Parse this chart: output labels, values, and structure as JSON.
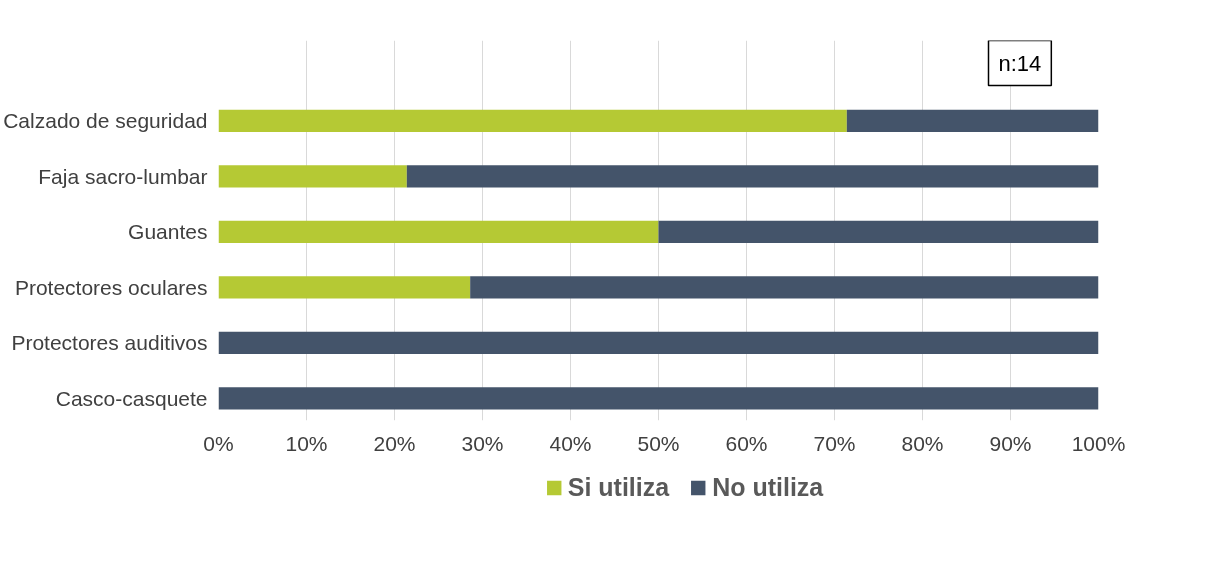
{
  "chart_data": {
    "type": "bar",
    "orientation": "horizontal",
    "stacked": true,
    "categories": [
      "Calzado de seguridad",
      "Faja sacro-lumbar",
      "Guantes",
      "Protectores oculares",
      "Protectores auditivos",
      "Casco-casquete"
    ],
    "series": [
      {
        "name": "Si utiliza",
        "color": "#b5c934",
        "values": [
          71.4,
          21.4,
          50,
          28.6,
          0,
          0
        ]
      },
      {
        "name": "No utiliza",
        "color": "#44546a",
        "values": [
          28.6,
          78.6,
          50,
          71.4,
          100,
          100
        ]
      }
    ],
    "xlim": [
      0,
      100
    ],
    "xticks": [
      {
        "value": 0,
        "label": "0%"
      },
      {
        "value": 10,
        "label": "10%"
      },
      {
        "value": 20,
        "label": "20%"
      },
      {
        "value": 30,
        "label": "30%"
      },
      {
        "value": 40,
        "label": "40%"
      },
      {
        "value": 50,
        "label": "50%"
      },
      {
        "value": 60,
        "label": "60%"
      },
      {
        "value": 70,
        "label": "70%"
      },
      {
        "value": 80,
        "label": "80%"
      },
      {
        "value": 90,
        "label": "90%"
      },
      {
        "value": 100,
        "label": "100%"
      }
    ],
    "annotations": [
      "n:14"
    ],
    "grid": "x",
    "legend": "bottom"
  }
}
